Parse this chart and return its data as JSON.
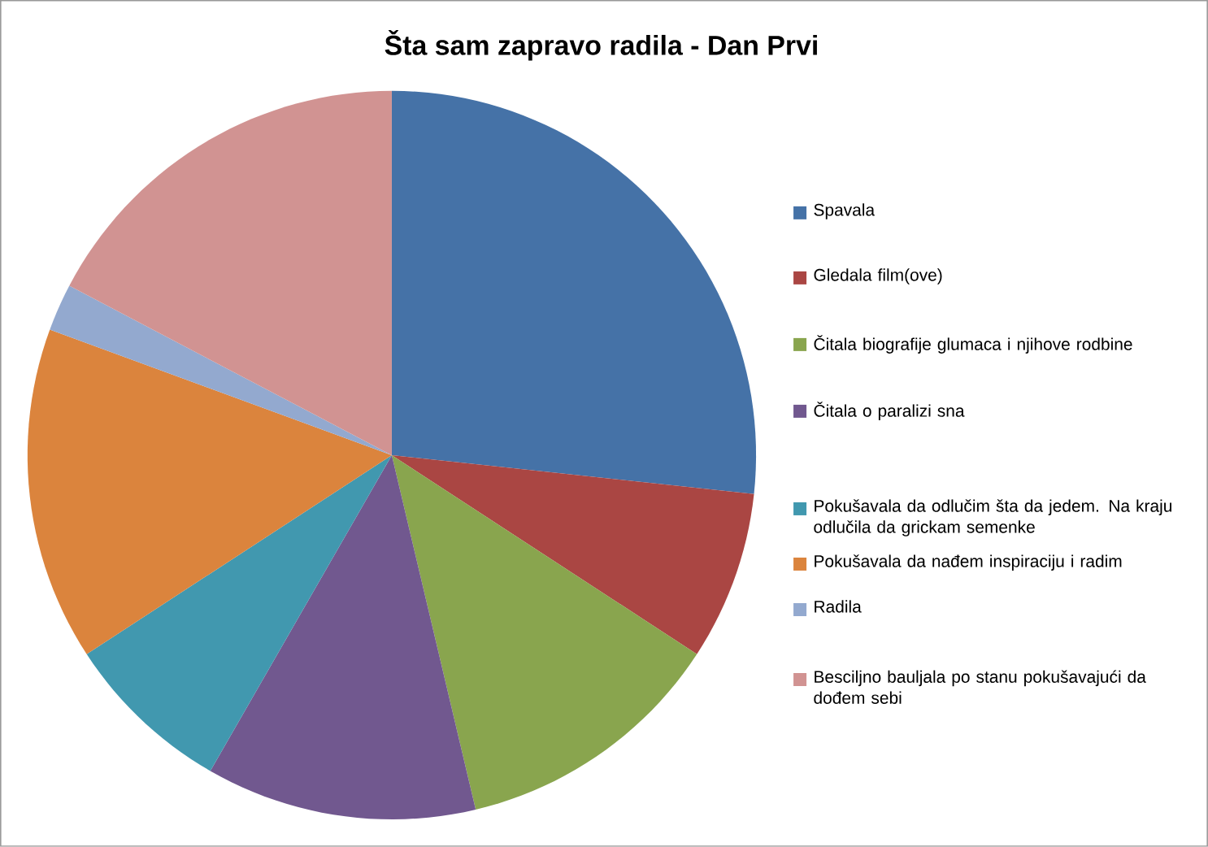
{
  "chart_data": {
    "type": "pie",
    "title": "Šta sam zapravo radila - Dan Prvi",
    "categories": [
      "Spavala",
      "Gledala film(ove)",
      "Čitala biografije glumaca i njihove rodbine",
      "Čitala o paralizi sna",
      "Pokušavala da odlučim šta da jedem. Na kraju odlučila da grickam semenke",
      "Pokušavala da nađem inspiraciju i radim",
      "Radila",
      "Besciljno bauljala po stanu pokušavajući da dođem sebi"
    ],
    "values": [
      26.7,
      7.5,
      12.1,
      12,
      7.5,
      14.8,
      2.1,
      17.3
    ],
    "colors": [
      "#4572a7",
      "#aa4643",
      "#89a54e",
      "#71588f",
      "#4198af",
      "#db843d",
      "#93a9cf",
      "#d19392"
    ],
    "legend": "right"
  }
}
